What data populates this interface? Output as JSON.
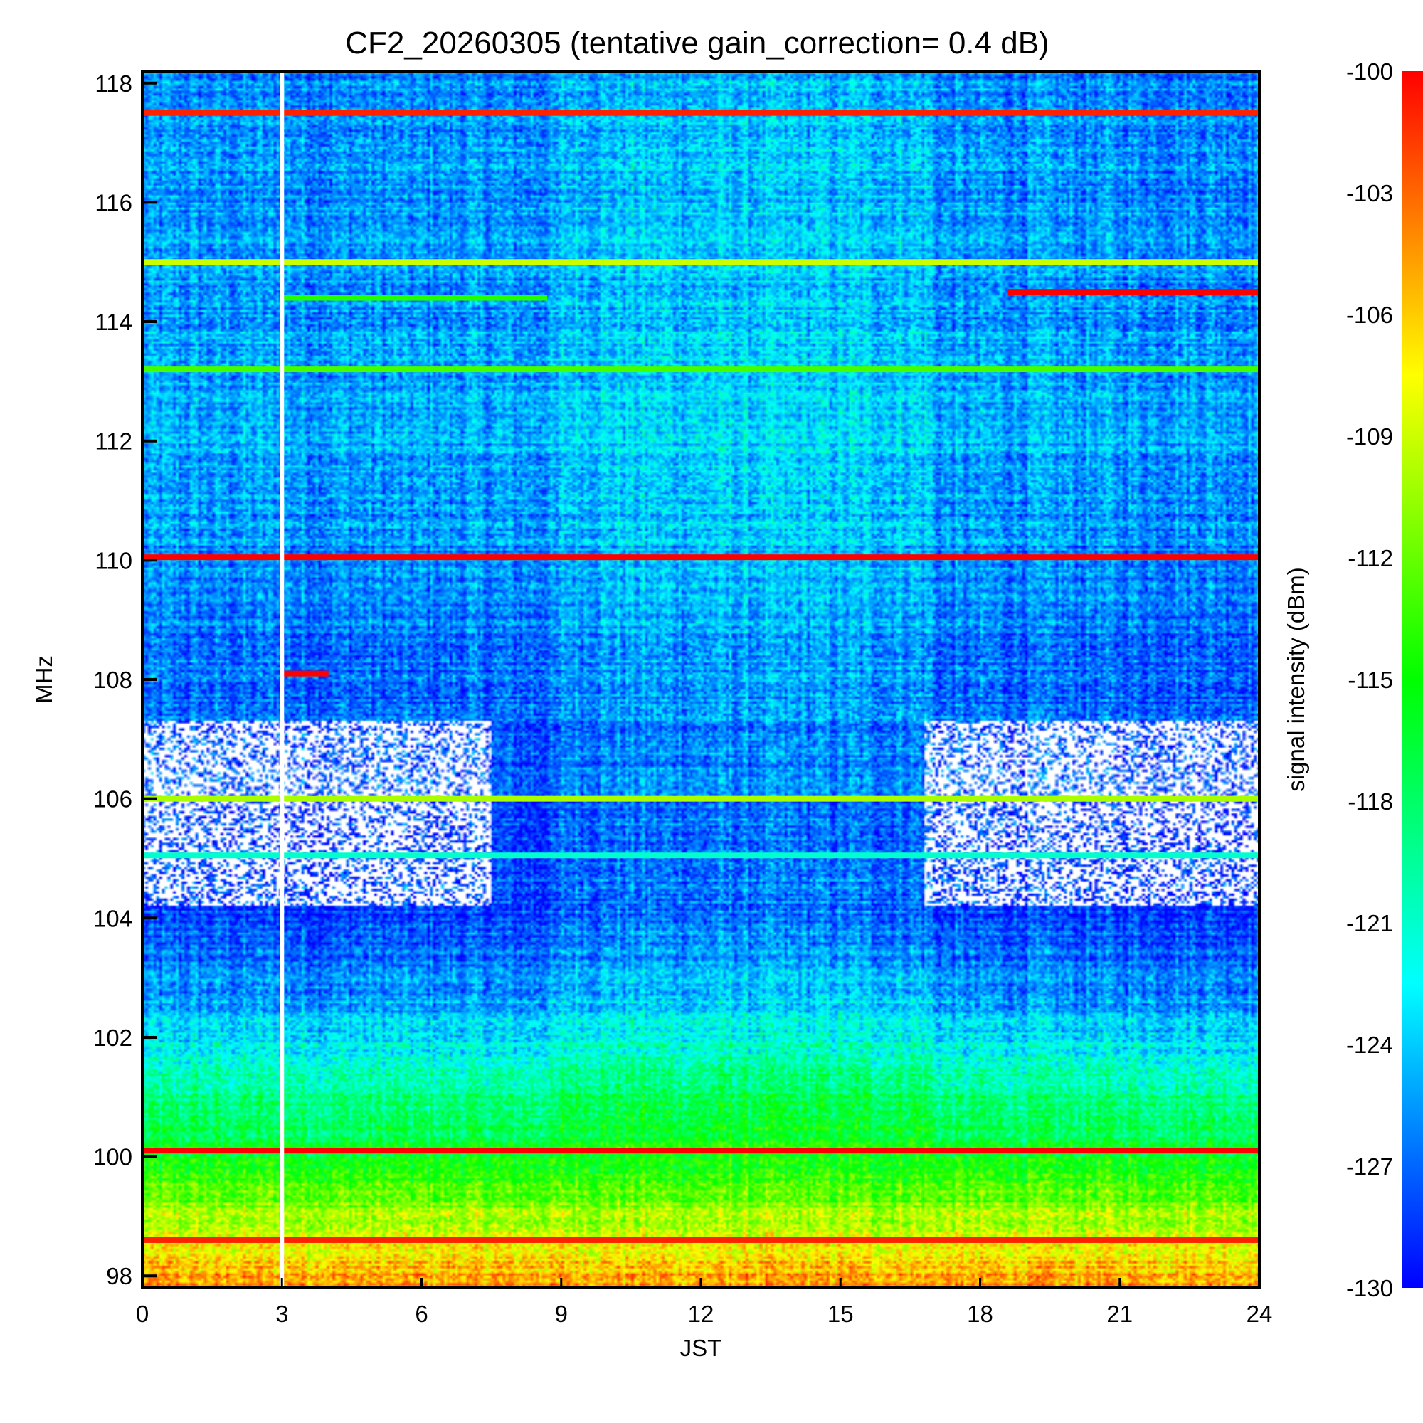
{
  "chart_data": {
    "type": "heatmap",
    "title": "CF2_20260305 (tentative gain_correction=  0.4 dB)",
    "xlabel": "JST",
    "ylabel": "MHz",
    "colorbar_label": "signal intensity (dBm)",
    "xlim": [
      0,
      24
    ],
    "ylim": [
      97.8,
      118.2
    ],
    "clim": [
      -130,
      -100
    ],
    "x_ticks": [
      0,
      3,
      6,
      9,
      12,
      15,
      18,
      21,
      24
    ],
    "y_ticks": [
      98,
      100,
      102,
      104,
      106,
      108,
      110,
      112,
      114,
      116,
      118
    ],
    "colorbar_ticks": [
      -100,
      -103,
      -106,
      -109,
      -112,
      -115,
      -118,
      -121,
      -124,
      -127,
      -130
    ],
    "data_gap_jst": 3.0,
    "carriers": [
      {
        "freq_mhz": 117.5,
        "dbm": -101,
        "jst": [
          0,
          24
        ]
      },
      {
        "freq_mhz": 115.0,
        "dbm": -109,
        "jst": [
          0,
          24
        ]
      },
      {
        "freq_mhz": 114.4,
        "dbm": -114,
        "jst": [
          3,
          8.7
        ]
      },
      {
        "freq_mhz": 114.5,
        "dbm": -100,
        "jst": [
          18.6,
          24
        ]
      },
      {
        "freq_mhz": 113.2,
        "dbm": -113,
        "jst": [
          0,
          24
        ]
      },
      {
        "freq_mhz": 110.05,
        "dbm": -100,
        "jst": [
          0,
          24
        ]
      },
      {
        "freq_mhz": 108.1,
        "dbm": -100,
        "jst": [
          3,
          4
        ]
      },
      {
        "freq_mhz": 106.0,
        "dbm": -110,
        "jst": [
          0,
          24
        ]
      },
      {
        "freq_mhz": 105.05,
        "dbm": -121,
        "jst": [
          0,
          24
        ]
      },
      {
        "freq_mhz": 100.1,
        "dbm": -100,
        "jst": [
          0,
          24
        ]
      },
      {
        "freq_mhz": 98.6,
        "dbm": -101,
        "jst": [
          0,
          24
        ]
      }
    ],
    "background_dbm_by_freq": [
      {
        "freq_mhz": 98,
        "dbm": -105
      },
      {
        "freq_mhz": 99,
        "dbm": -110
      },
      {
        "freq_mhz": 100,
        "dbm": -116
      },
      {
        "freq_mhz": 101,
        "dbm": -119
      },
      {
        "freq_mhz": 102,
        "dbm": -123
      },
      {
        "freq_mhz": 103,
        "dbm": -126
      },
      {
        "freq_mhz": 104,
        "dbm": -128
      },
      {
        "freq_mhz": 106,
        "dbm": -128
      },
      {
        "freq_mhz": 108,
        "dbm": -127
      },
      {
        "freq_mhz": 112,
        "dbm": -125
      },
      {
        "freq_mhz": 118,
        "dbm": -126
      }
    ],
    "below_scale_region": {
      "freq_mhz": [
        104.2,
        107.3
      ],
      "jst": [
        [
          0,
          7.5
        ],
        [
          16.8,
          24
        ]
      ]
    }
  }
}
